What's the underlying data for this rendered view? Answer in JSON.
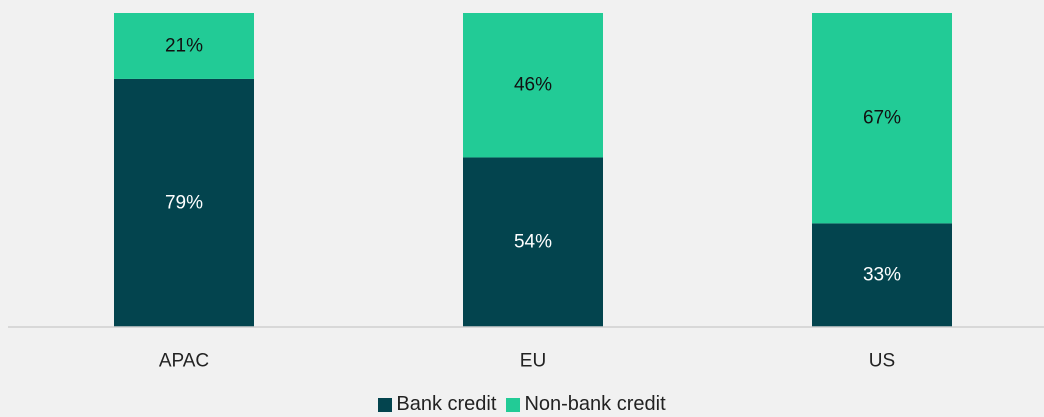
{
  "chart_data": {
    "type": "bar",
    "stacked": true,
    "categories": [
      "APAC",
      "EU",
      "US"
    ],
    "series": [
      {
        "name": "Bank credit",
        "values": [
          79,
          54,
          33
        ],
        "labels": [
          "79%",
          "54%",
          "33%"
        ],
        "color": "#03444e",
        "label_color": "#ffffff"
      },
      {
        "name": "Non-bank credit",
        "values": [
          21,
          46,
          67
        ],
        "labels": [
          "21%",
          "46%",
          "67%"
        ],
        "color": "#22cb96",
        "label_color": "#111111"
      }
    ],
    "ylim": [
      0,
      100
    ],
    "grid": false,
    "legend_position": "bottom"
  }
}
